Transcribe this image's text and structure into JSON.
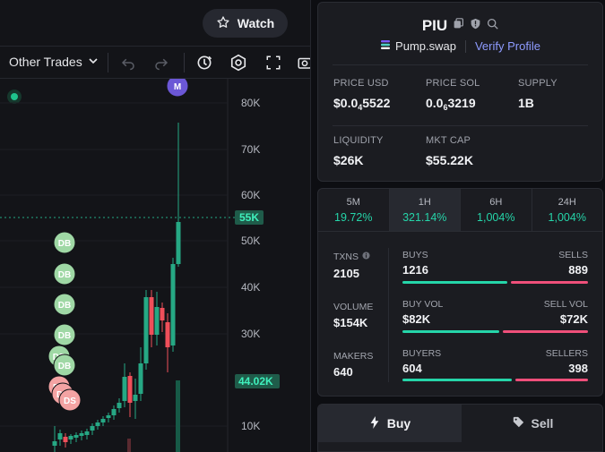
{
  "header": {
    "watch_label": "Watch"
  },
  "toolbar": {
    "trades_select": "Other Trades"
  },
  "chart_data": {
    "type": "candlestick",
    "price_axis": {
      "ticks": [
        "80K",
        "70K",
        "60K",
        "55K",
        "50K",
        "40K",
        "30K",
        "10K"
      ],
      "current_price_label": "55K",
      "secondary_label": "44.02K"
    },
    "markers": [
      "M",
      "DB",
      "DB",
      "DB",
      "DB",
      "DB",
      "DB",
      "DS",
      "DS",
      "DS"
    ],
    "colors": {
      "up": "#26a884",
      "down": "#ef4f5a",
      "accent": "#26a884"
    }
  },
  "token": {
    "name": "PIU",
    "platform": "Pump.swap",
    "verify_label": "Verify Profile",
    "metrics": [
      {
        "label": "PRICE USD",
        "value_prefix": "$0.0",
        "value_sub": "4",
        "value_suffix": "5522"
      },
      {
        "label": "PRICE SOL",
        "value_prefix": "0.0",
        "value_sub": "6",
        "value_suffix": "3219"
      },
      {
        "label": "SUPPLY",
        "value": "1B"
      },
      {
        "label": "LIQUIDITY",
        "value": "$26K"
      },
      {
        "label": "MKT CAP",
        "value": "$55.22K"
      }
    ]
  },
  "timeframes": [
    {
      "label": "5M",
      "change": "19.72%"
    },
    {
      "label": "1H",
      "change": "321.14%"
    },
    {
      "label": "6H",
      "change": "1,004%"
    },
    {
      "label": "24H",
      "change": "1,004%"
    }
  ],
  "stats": {
    "txns_label": "TXNS",
    "txns_value": "2105",
    "volume_label": "VOLUME",
    "volume_value": "$154K",
    "makers_label": "MAKERS",
    "makers_value": "640",
    "buys_label": "BUYS",
    "buys_value": "1216",
    "sells_label": "SELLS",
    "sells_value": "889",
    "buy_vol_label": "BUY VOL",
    "buy_vol_value": "$82K",
    "sell_vol_label": "SELL VOL",
    "sell_vol_value": "$72K",
    "buyers_label": "BUYERS",
    "buyers_value": "604",
    "sellers_label": "SELLERS",
    "sellers_value": "398",
    "buys_ratio": 0.578,
    "buy_vol_ratio": 0.532,
    "buyers_ratio": 0.603
  },
  "trade": {
    "buy_label": "Buy",
    "sell_label": "Sell"
  },
  "colors": {
    "green": "#25d5a9",
    "red": "#ef4f7a",
    "brand_blue": "#7a8cff"
  }
}
